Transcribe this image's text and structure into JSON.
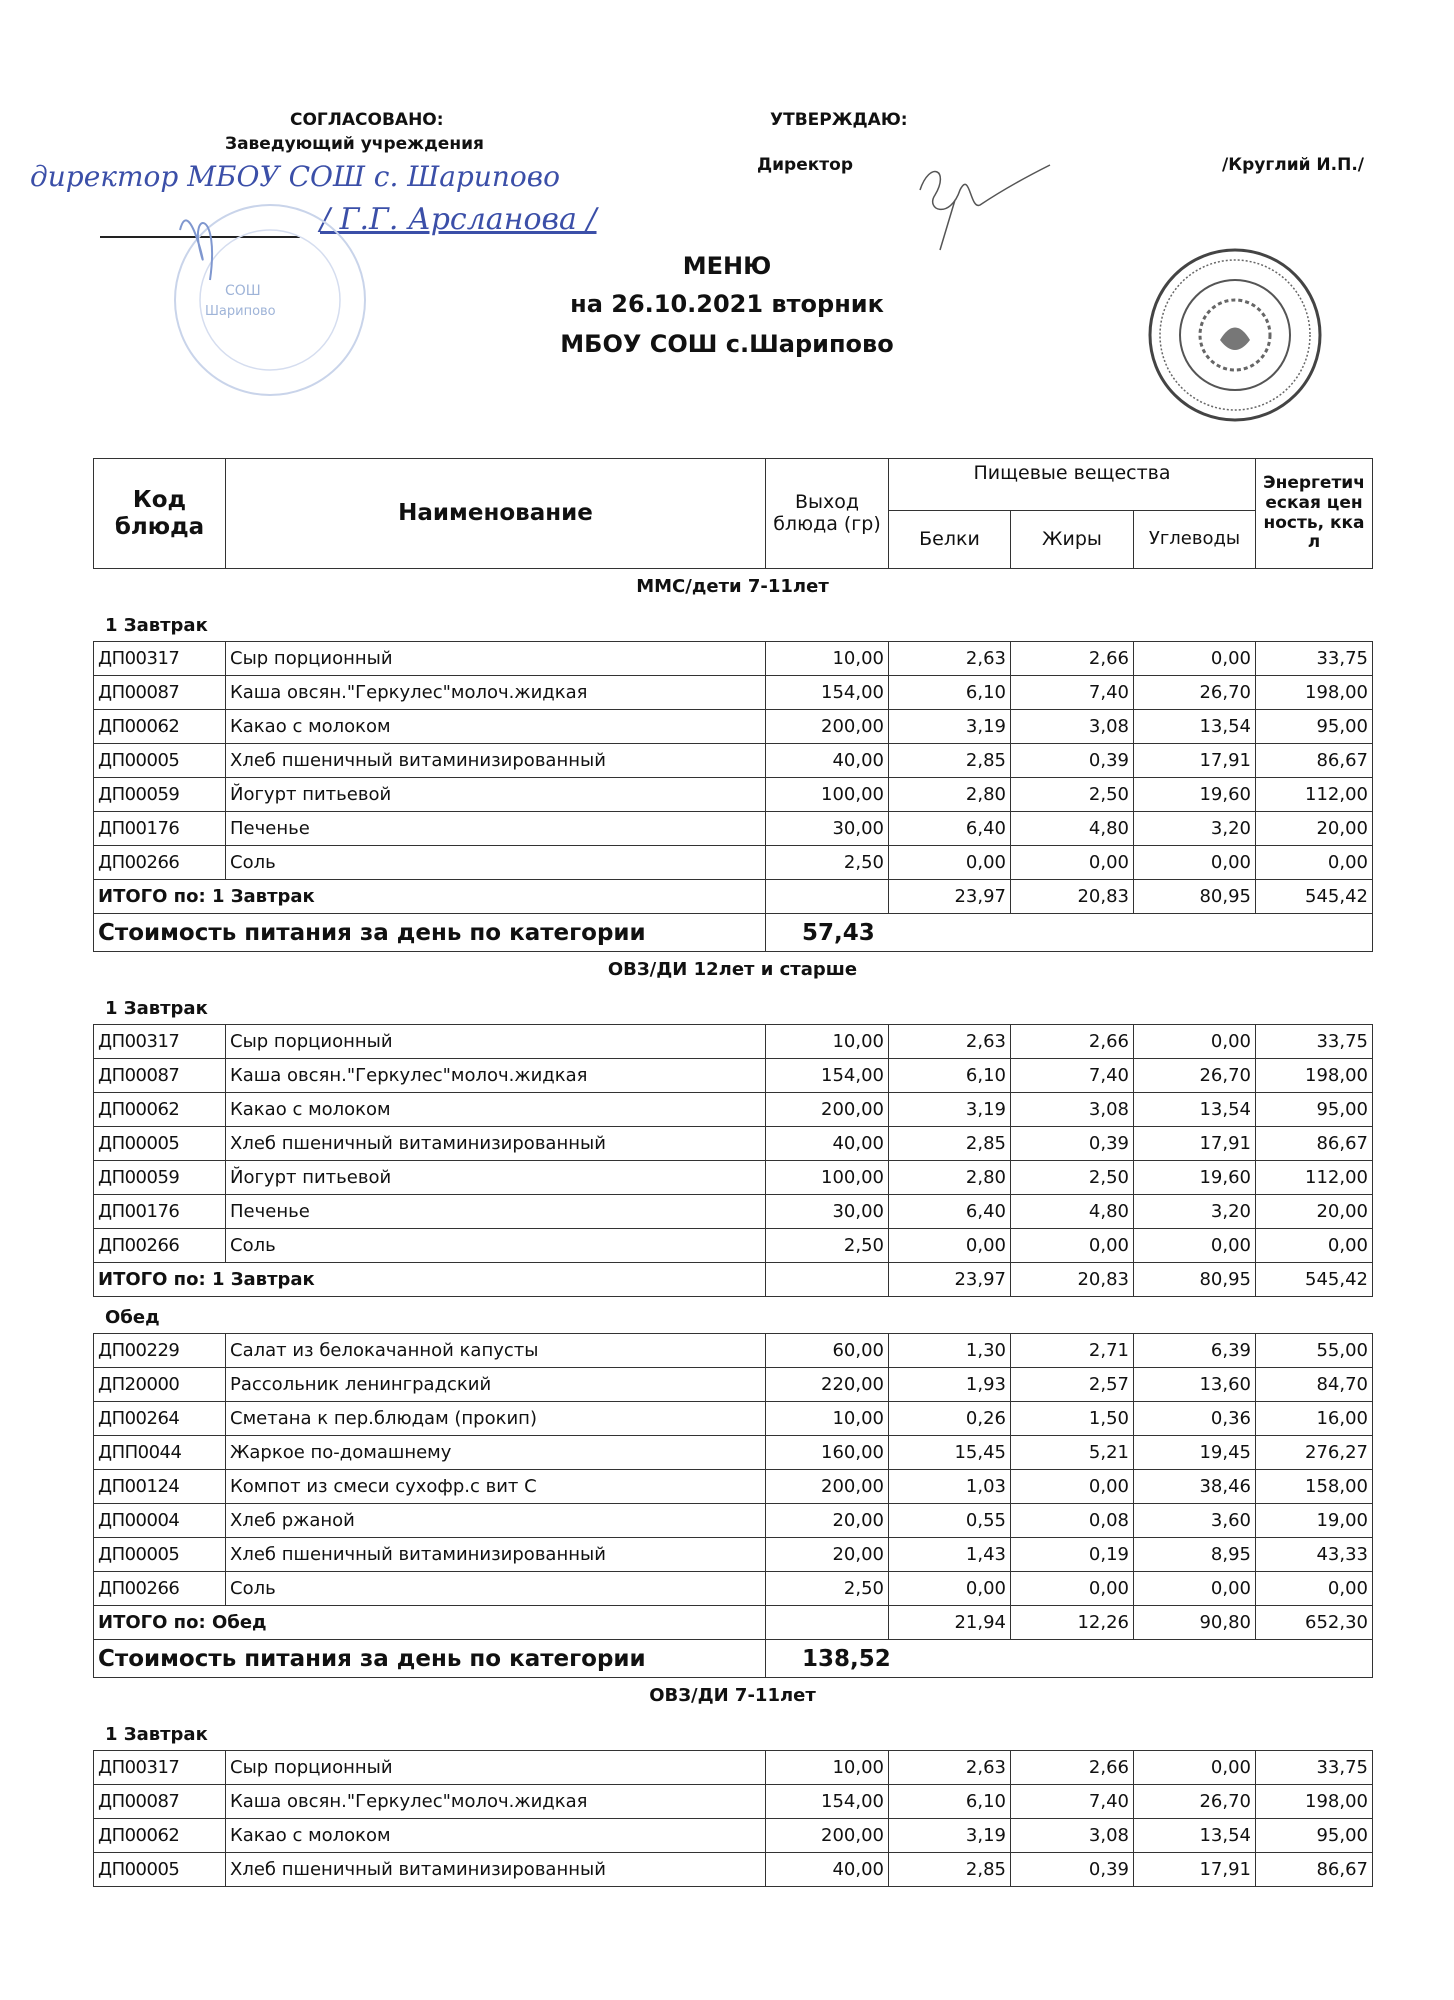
{
  "approval": {
    "left_heading": "СОГЛАСОВАНО:",
    "left_position": "Заведующий учреждения",
    "left_handwritten_position": "директор МБОУ СОШ с. Шарипово",
    "left_handwritten_name": "/ Г.Г. Арсланова /",
    "left_stamp_text": "СОШ Шарипово",
    "right_heading": "УТВЕРЖДАЮ:",
    "right_position": "Директор",
    "right_name": "/Круглий И.П./"
  },
  "title": {
    "line1": "МЕНЮ",
    "line2": "на 26.10.2021  вторник",
    "line3": "МБОУ СОШ с.Шарипово"
  },
  "table_header": {
    "code": "Код блюда",
    "name": "Наименование",
    "yield": "Выход блюда (гр)",
    "nutrients": "Пищевые вещества",
    "protein": "Белки",
    "fat": "Жиры",
    "carbs": "Углеводы",
    "energy": "Энергетическая ценность, ккал"
  },
  "sections": [
    {
      "category": "ММС/дети 7-11лет",
      "blocks": [
        {
          "meal": "1 Завтрак",
          "rows": [
            [
              "ДП00317",
              "Сыр порционный",
              "10,00",
              "2,63",
              "2,66",
              "0,00",
              "33,75"
            ],
            [
              "ДП00087",
              "Каша овсян.\"Геркулес\"молоч.жидкая",
              "154,00",
              "6,10",
              "7,40",
              "26,70",
              "198,00"
            ],
            [
              "ДП00062",
              "Какао с молоком",
              "200,00",
              "3,19",
              "3,08",
              "13,54",
              "95,00"
            ],
            [
              "ДП00005",
              "Хлеб пшеничный витаминизированный",
              "40,00",
              "2,85",
              "0,39",
              "17,91",
              "86,67"
            ],
            [
              "ДП00059",
              "Йогурт питьевой",
              "100,00",
              "2,80",
              "2,50",
              "19,60",
              "112,00"
            ],
            [
              "ДП00176",
              "Печенье",
              "30,00",
              "6,40",
              "4,80",
              "3,20",
              "20,00"
            ],
            [
              "ДП00266",
              "Соль",
              "2,50",
              "0,00",
              "0,00",
              "0,00",
              "0,00"
            ]
          ],
          "total": {
            "label": "ИТОГО по: 1 Завтрак",
            "values": [
              "23,97",
              "20,83",
              "80,95",
              "545,42"
            ]
          }
        }
      ],
      "cost": {
        "label": "Стоимость питания за день по категории",
        "value": "57,43"
      }
    },
    {
      "category": "ОВЗ/ДИ 12лет и старше",
      "blocks": [
        {
          "meal": "1 Завтрак",
          "rows": [
            [
              "ДП00317",
              "Сыр порционный",
              "10,00",
              "2,63",
              "2,66",
              "0,00",
              "33,75"
            ],
            [
              "ДП00087",
              "Каша овсян.\"Геркулес\"молоч.жидкая",
              "154,00",
              "6,10",
              "7,40",
              "26,70",
              "198,00"
            ],
            [
              "ДП00062",
              "Какао с молоком",
              "200,00",
              "3,19",
              "3,08",
              "13,54",
              "95,00"
            ],
            [
              "ДП00005",
              "Хлеб пшеничный витаминизированный",
              "40,00",
              "2,85",
              "0,39",
              "17,91",
              "86,67"
            ],
            [
              "ДП00059",
              "Йогурт питьевой",
              "100,00",
              "2,80",
              "2,50",
              "19,60",
              "112,00"
            ],
            [
              "ДП00176",
              "Печенье",
              "30,00",
              "6,40",
              "4,80",
              "3,20",
              "20,00"
            ],
            [
              "ДП00266",
              "Соль",
              "2,50",
              "0,00",
              "0,00",
              "0,00",
              "0,00"
            ]
          ],
          "total": {
            "label": "ИТОГО по: 1 Завтрак",
            "values": [
              "23,97",
              "20,83",
              "80,95",
              "545,42"
            ]
          }
        },
        {
          "meal": "Обед",
          "rows": [
            [
              "ДП00229",
              "Салат из белокачанной капусты",
              "60,00",
              "1,30",
              "2,71",
              "6,39",
              "55,00"
            ],
            [
              "ДП20000",
              "Рассольник ленинградский",
              "220,00",
              "1,93",
              "2,57",
              "13,60",
              "84,70"
            ],
            [
              "ДП00264",
              "Сметана к пер.блюдам (прокип)",
              "10,00",
              "0,26",
              "1,50",
              "0,36",
              "16,00"
            ],
            [
              "ДПП0044",
              "Жаркое по-домашнему",
              "160,00",
              "15,45",
              "5,21",
              "19,45",
              "276,27"
            ],
            [
              "ДП00124",
              "Компот из смеси сухофр.с вит С",
              "200,00",
              "1,03",
              "0,00",
              "38,46",
              "158,00"
            ],
            [
              "ДП00004",
              "Хлеб ржаной",
              "20,00",
              "0,55",
              "0,08",
              "3,60",
              "19,00"
            ],
            [
              "ДП00005",
              "Хлеб пшеничный витаминизированный",
              "20,00",
              "1,43",
              "0,19",
              "8,95",
              "43,33"
            ],
            [
              "ДП00266",
              "Соль",
              "2,50",
              "0,00",
              "0,00",
              "0,00",
              "0,00"
            ]
          ],
          "total": {
            "label": "ИТОГО по: Обед",
            "values": [
              "21,94",
              "12,26",
              "90,80",
              "652,30"
            ]
          }
        }
      ],
      "cost": {
        "label": "Стоимость питания за день по категории",
        "value": "138,52"
      }
    },
    {
      "category": "ОВЗ/ДИ 7-11лет",
      "blocks": [
        {
          "meal": "1 Завтрак",
          "rows": [
            [
              "ДП00317",
              "Сыр порционный",
              "10,00",
              "2,63",
              "2,66",
              "0,00",
              "33,75"
            ],
            [
              "ДП00087",
              "Каша овсян.\"Геркулес\"молоч.жидкая",
              "154,00",
              "6,10",
              "7,40",
              "26,70",
              "198,00"
            ],
            [
              "ДП00062",
              "Какао с молоком",
              "200,00",
              "3,19",
              "3,08",
              "13,54",
              "95,00"
            ],
            [
              "ДП00005",
              "Хлеб пшеничный витаминизированный",
              "40,00",
              "2,85",
              "0,39",
              "17,91",
              "86,67"
            ]
          ]
        }
      ]
    }
  ],
  "colors": {
    "ink": "#111111",
    "signature_blue": "#3b4fa8",
    "stamp_blue": "#9fb4d8",
    "stamp_gray": "#555555"
  }
}
